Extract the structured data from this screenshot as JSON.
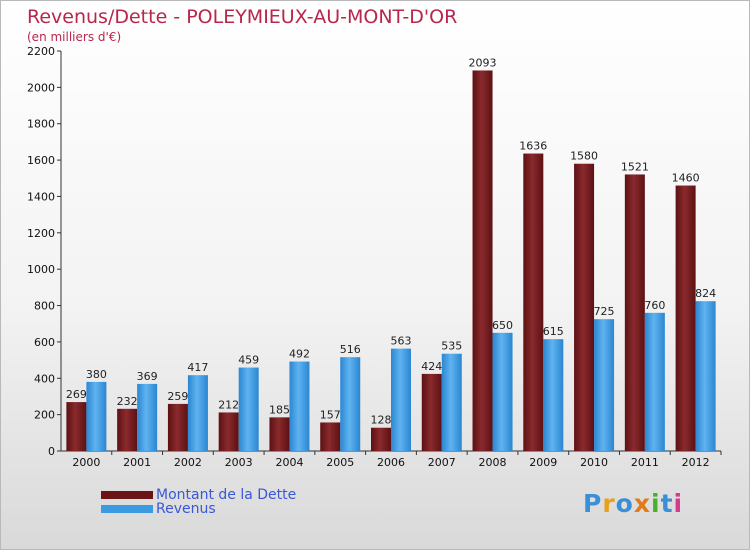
{
  "title": "Revenus/Dette - POLEYMIEUX-AU-MONT-D'OR",
  "subtitle": "(en milliers d'€)",
  "logo": {
    "text": "Proxiti",
    "colors": [
      "#3a8fd6",
      "#e8a21a",
      "#3a8fd6",
      "#e07a1a",
      "#4caf2a",
      "#3a8fd6",
      "#d63a8f"
    ]
  },
  "colors": {
    "dette": "#7a1f22",
    "revenus": "#3b9be0",
    "title": "#b8264b",
    "legend_text": "#3a57d6"
  },
  "legend": [
    {
      "label": "Montant de la Dette",
      "series": "dette"
    },
    {
      "label": "Revenus",
      "series": "revenus"
    }
  ],
  "chart_data": {
    "type": "bar",
    "title": "Revenus/Dette - POLEYMIEUX-AU-MONT-D'OR",
    "subtitle": "(en milliers d'€)",
    "xlabel": "",
    "ylabel": "",
    "categories": [
      "2000",
      "2001",
      "2002",
      "2003",
      "2004",
      "2005",
      "2006",
      "2007",
      "2008",
      "2009",
      "2010",
      "2011",
      "2012"
    ],
    "series": [
      {
        "name": "Montant de la Dette",
        "values": [
          269,
          232,
          259,
          212,
          185,
          157,
          128,
          424,
          2093,
          1636,
          1580,
          1521,
          1460
        ]
      },
      {
        "name": "Revenus",
        "values": [
          380,
          369,
          417,
          459,
          492,
          516,
          563,
          535,
          650,
          615,
          725,
          760,
          824
        ]
      }
    ],
    "ylim": [
      0,
      2200
    ],
    "yticks": [
      0,
      200,
      400,
      600,
      800,
      1000,
      1200,
      1400,
      1600,
      1800,
      2000,
      2200
    ],
    "grid": false,
    "legend_position": "bottom-left"
  }
}
